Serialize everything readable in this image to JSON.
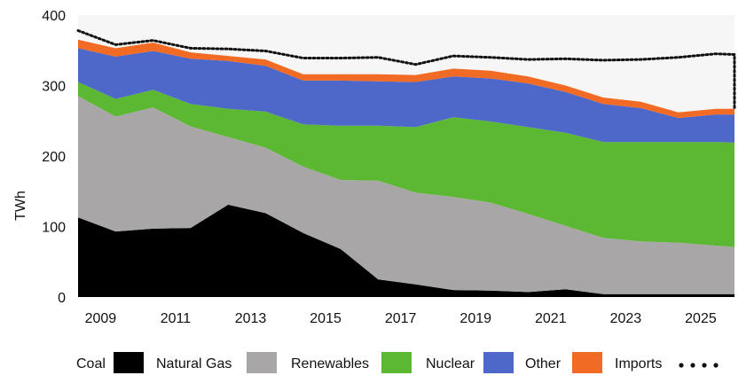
{
  "chart_data": {
    "type": "area",
    "ylabel": "TWh",
    "ylim": [
      0,
      400
    ],
    "yticks": [
      0,
      100,
      200,
      300,
      400
    ],
    "xlim": [
      2008.4,
      2025.9
    ],
    "xticks": [
      "2009",
      "2011",
      "2013",
      "2015",
      "2017",
      "2019",
      "2021",
      "2023",
      "2025"
    ],
    "grid": false,
    "legend_position": "bottom",
    "x": [
      2008.4,
      2009.4,
      2010.4,
      2011.4,
      2012.4,
      2013.4,
      2014.4,
      2015.4,
      2016.4,
      2017.4,
      2018.4,
      2019.4,
      2020.4,
      2021.4,
      2022.4,
      2023.4,
      2024.4,
      2025.4,
      2025.9
    ],
    "series": [
      {
        "name": "Coal",
        "color": "#000000",
        "values": [
          113,
          93,
          97,
          98,
          131,
          119,
          91,
          68,
          25,
          18,
          10,
          9,
          7,
          11,
          4,
          4,
          4,
          4,
          4
        ]
      },
      {
        "name": "Natural Gas",
        "color": "#a8a6a7",
        "values": [
          172,
          163,
          172,
          144,
          96,
          93,
          94,
          98,
          140,
          130,
          132,
          125,
          111,
          90,
          80,
          75,
          73,
          69,
          67
        ]
      },
      {
        "name": "Renewables",
        "color": "#5cb833",
        "values": [
          20,
          25,
          25,
          32,
          40,
          51,
          60,
          77,
          78,
          93,
          113,
          115,
          123,
          132,
          136,
          141,
          143,
          147,
          148
        ]
      },
      {
        "name": "Nuclear",
        "color": "#4d68c8",
        "values": [
          48,
          60,
          55,
          64,
          68,
          65,
          62,
          64,
          63,
          64,
          58,
          61,
          62,
          58,
          54,
          48,
          34,
          39,
          40
        ]
      },
      {
        "name": "Other",
        "color": "#f16b24",
        "values": [
          12,
          12,
          12,
          9,
          7,
          9,
          9,
          9,
          10,
          10,
          11,
          11,
          10,
          9,
          9,
          9,
          8,
          8,
          8
        ]
      },
      {
        "name": "Imports",
        "color": "none",
        "style": "dotted",
        "values": [
          378,
          358,
          364,
          353,
          352,
          349,
          339,
          339,
          340,
          330,
          342,
          340,
          337,
          338,
          336,
          337,
          340,
          345,
          344
        ]
      }
    ]
  }
}
